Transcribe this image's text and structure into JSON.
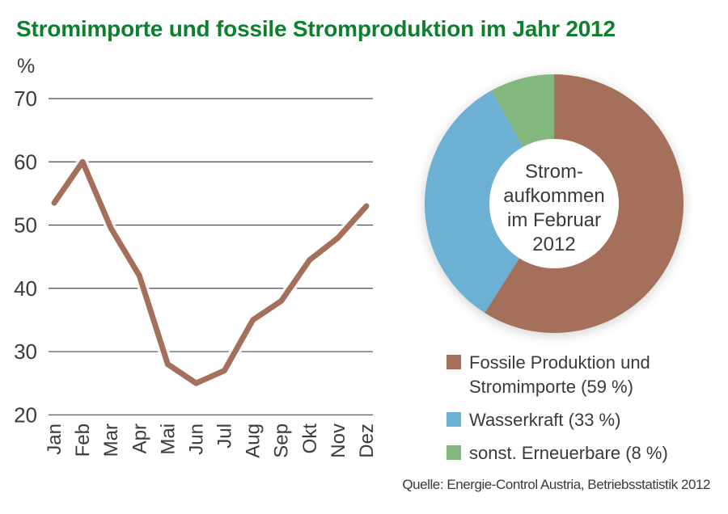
{
  "title": "Stromimporte und fossile Stromproduktion im Jahr 2012",
  "source": "Quelle: Energie-Control Austria, Betriebsstatistik 2012",
  "colors": {
    "title_green": "#0e7f2f",
    "text": "#3a3a3a",
    "grid": "#4a4a4a",
    "line_brown": "#a5705b",
    "hydro_blue": "#6cb0d3",
    "renewable_green": "#82b77d"
  },
  "chart_data": [
    {
      "type": "line",
      "name": "stromimporte-monatsverlauf",
      "ylabel": "%",
      "categories": [
        "Jan",
        "Feb",
        "Mar",
        "Apr",
        "Mai",
        "Jun",
        "Jul",
        "Aug",
        "Sep",
        "Okt",
        "Nov",
        "Dez"
      ],
      "values": [
        53.5,
        60,
        49.5,
        42,
        28,
        25,
        27,
        35,
        38,
        44.5,
        48,
        53
      ],
      "ylim": [
        20,
        70
      ],
      "yticks": [
        20,
        30,
        40,
        50,
        60,
        70
      ],
      "grid": true,
      "legend_position": "none",
      "line_color": "#a5705b"
    },
    {
      "type": "pie",
      "name": "stromaufkommen-februar-donut",
      "donut": true,
      "center_label": "Strom-\naufkommen\nim Februar\n2012",
      "start_angle_deg": 0,
      "clockwise": true,
      "legend_position": "below",
      "slices": [
        {
          "label": "Fossile Produktion und Stromimporte (59 %)",
          "legend_label": "Fossile Produktion und\nStromimporte (59 %)",
          "value": 59,
          "color": "#a5705b"
        },
        {
          "label": "Wasserkraft (33 %)",
          "legend_label": "Wasserkraft (33 %)",
          "value": 33,
          "color": "#6cb0d3"
        },
        {
          "label": "sonst. Erneuerbare (8 %)",
          "legend_label": "sonst. Erneuerbare (8 %)",
          "value": 8,
          "color": "#82b77d"
        }
      ]
    }
  ]
}
